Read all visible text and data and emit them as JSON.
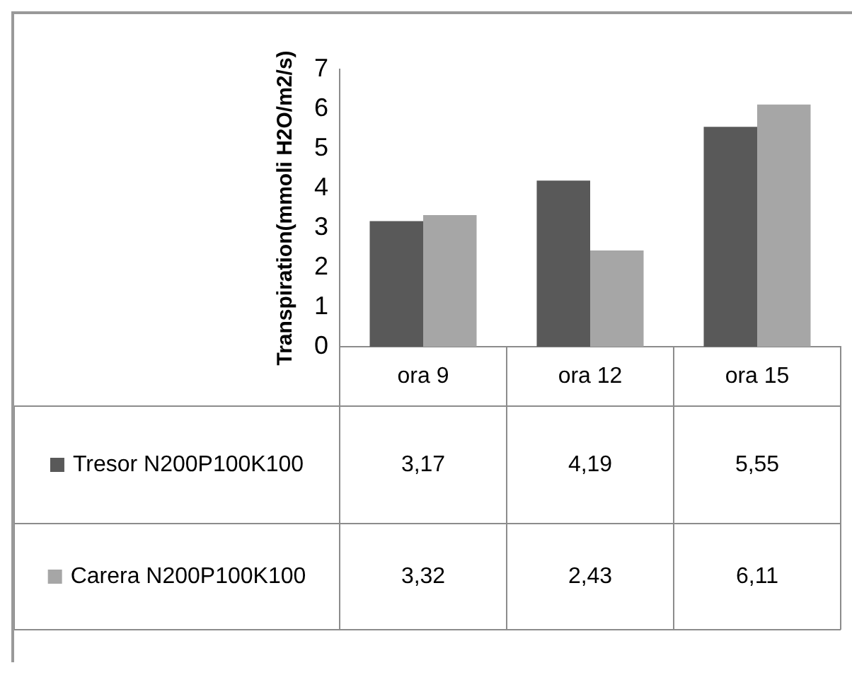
{
  "chart_data": {
    "type": "bar",
    "ylabel": "Transpiration(mmoli H2O/m2/s)",
    "categories": [
      "ora 9",
      "ora 12",
      "ora 15"
    ],
    "series": [
      {
        "name": "Tresor N200P100K100",
        "color": "#595959",
        "values": [
          3.17,
          4.19,
          5.55
        ],
        "value_labels": [
          "3,17",
          "4,19",
          "5,55"
        ]
      },
      {
        "name": "Carera N200P100K100",
        "color": "#a6a6a6",
        "values": [
          3.32,
          2.43,
          6.11
        ],
        "value_labels": [
          "3,32",
          "2,43",
          "6,11"
        ]
      }
    ],
    "ylim": [
      0,
      7
    ],
    "yticks": [
      0,
      1,
      2,
      3,
      4,
      5,
      6,
      7
    ],
    "grid": false,
    "legend": "bottom"
  }
}
